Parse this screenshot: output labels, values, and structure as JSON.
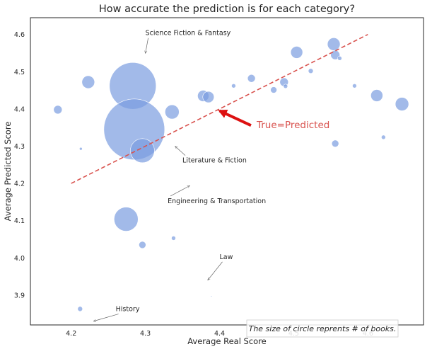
{
  "chart_data": {
    "type": "scatter",
    "title": "How accurate the prediction is for each category?",
    "xlabel": "Average Real Score",
    "ylabel": "Average Predicted Score",
    "xlim": [
      4.145,
      4.675
    ],
    "ylim": [
      3.82,
      4.645
    ],
    "x_ticks": [
      "4.2",
      "4.3",
      "4.4",
      "4.5",
      "4.6"
    ],
    "y_ticks": [
      "3.9",
      "4.0",
      "4.1",
      "4.2",
      "4.3",
      "4.4",
      "4.5",
      "4.6"
    ],
    "grid": false,
    "point_color": "#7b9ddf",
    "points": [
      {
        "x": 4.182,
        "y": 4.398,
        "size": 6
      },
      {
        "x": 4.223,
        "y": 4.472,
        "size": 9
      },
      {
        "x": 4.213,
        "y": 4.293,
        "size": 2
      },
      {
        "x": 4.283,
        "y": 4.462,
        "size": 33
      },
      {
        "x": 4.285,
        "y": 4.345,
        "size": 43
      },
      {
        "x": 4.296,
        "y": 4.288,
        "size": 17
      },
      {
        "x": 4.336,
        "y": 4.392,
        "size": 10
      },
      {
        "x": 4.378,
        "y": 4.435,
        "size": 8
      },
      {
        "x": 4.385,
        "y": 4.432,
        "size": 8
      },
      {
        "x": 4.419,
        "y": 4.462,
        "size": 3
      },
      {
        "x": 4.443,
        "y": 4.482,
        "size": 5.5
      },
      {
        "x": 4.473,
        "y": 4.451,
        "size": 4.5
      },
      {
        "x": 4.487,
        "y": 4.472,
        "size": 6
      },
      {
        "x": 4.489,
        "y": 4.461,
        "size": 3
      },
      {
        "x": 4.504,
        "y": 4.552,
        "size": 8.5
      },
      {
        "x": 4.523,
        "y": 4.502,
        "size": 3.5
      },
      {
        "x": 4.554,
        "y": 4.574,
        "size": 9
      },
      {
        "x": 4.556,
        "y": 4.545,
        "size": 6.5
      },
      {
        "x": 4.562,
        "y": 4.536,
        "size": 3
      },
      {
        "x": 4.582,
        "y": 4.462,
        "size": 3
      },
      {
        "x": 4.556,
        "y": 4.307,
        "size": 5
      },
      {
        "x": 4.612,
        "y": 4.436,
        "size": 8.5
      },
      {
        "x": 4.621,
        "y": 4.324,
        "size": 3
      },
      {
        "x": 4.646,
        "y": 4.413,
        "size": 9.5
      },
      {
        "x": 4.274,
        "y": 4.104,
        "size": 17
      },
      {
        "x": 4.296,
        "y": 4.035,
        "size": 5
      },
      {
        "x": 4.338,
        "y": 4.053,
        "size": 3
      },
      {
        "x": 4.212,
        "y": 3.863,
        "size": 3.5
      },
      {
        "x": 4.389,
        "y": 3.897,
        "size": 0.8
      }
    ],
    "reference_line": {
      "x": [
        4.2,
        4.6
      ],
      "y": [
        4.2,
        4.6
      ],
      "color": "#d9534f",
      "style": "dashed"
    },
    "annotations": [
      {
        "text": "Science Fiction & Fantasy",
        "text_x": 4.3,
        "text_y": 4.598,
        "point_x": 4.3,
        "point_y": 4.549
      },
      {
        "text": "Literature & Fiction",
        "text_x": 4.35,
        "text_y": 4.256,
        "point_x": 4.34,
        "point_y": 4.3
      },
      {
        "text": "Engineering & Transportation",
        "text_x": 4.33,
        "text_y": 4.147,
        "point_x": 4.36,
        "point_y": 4.194
      },
      {
        "text": "Law",
        "text_x": 4.4,
        "text_y": 3.997,
        "point_x": 4.384,
        "point_y": 3.94
      },
      {
        "text": "History",
        "text_x": 4.26,
        "text_y": 3.857,
        "point_x": 4.23,
        "point_y": 3.83
      }
    ],
    "true_line_label": {
      "text": "True=Predicted",
      "x": 4.45,
      "y": 4.348,
      "arrow_x": 4.4,
      "arrow_y": 4.395
    },
    "size_note": "The size of circle reprents # of books."
  }
}
